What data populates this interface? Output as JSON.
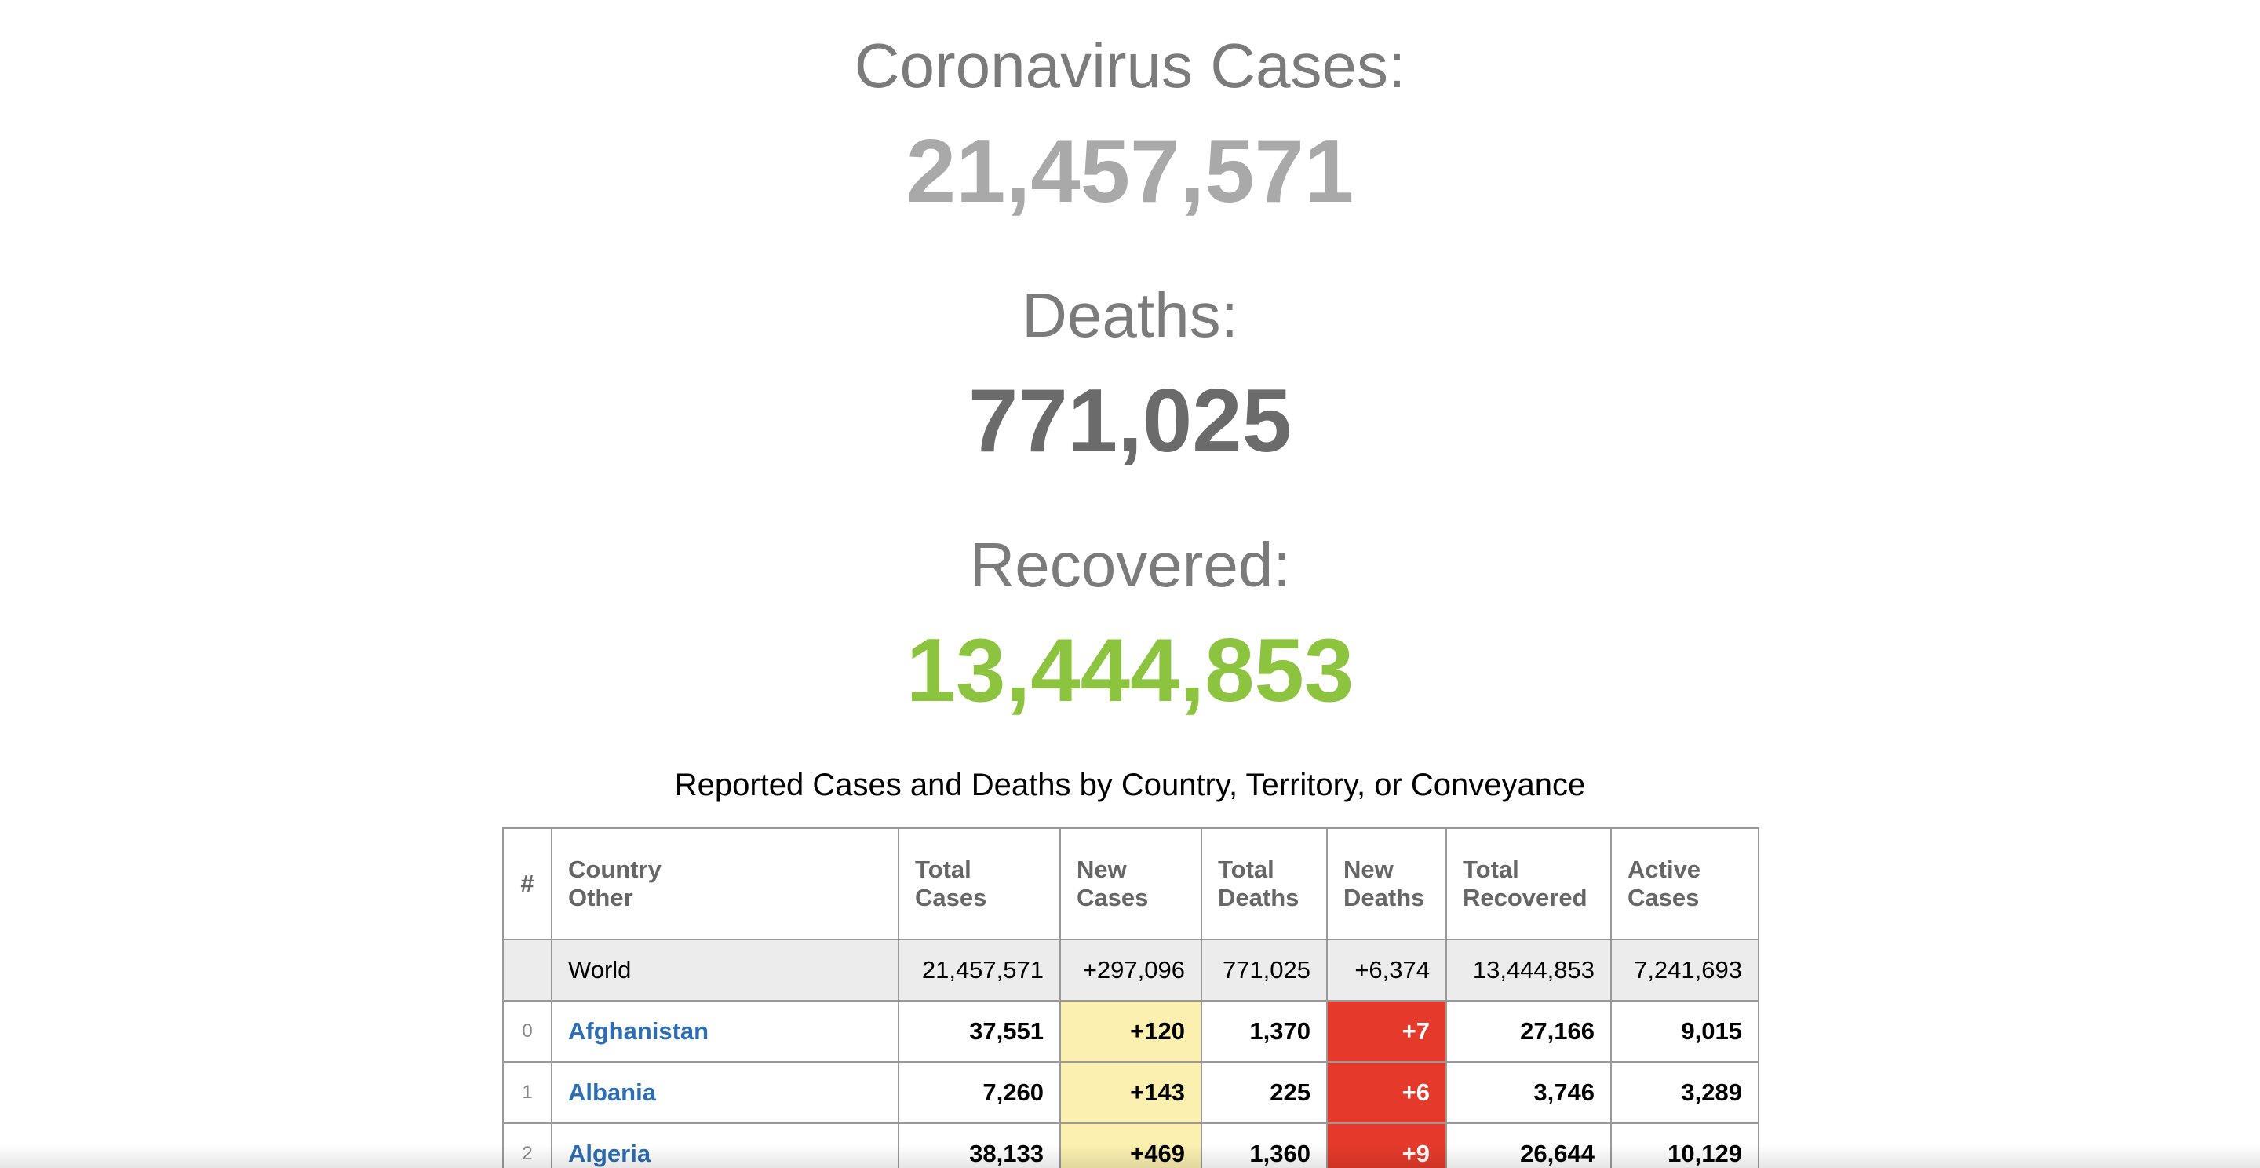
{
  "summary": {
    "cases": {
      "label": "Coronavirus Cases:",
      "value": "21,457,571"
    },
    "deaths": {
      "label": "Deaths:",
      "value": "771,025"
    },
    "recovered": {
      "label": "Recovered:",
      "value": "13,444,853"
    }
  },
  "table": {
    "title": "Reported Cases and Deaths by Country, Territory, or Conveyance",
    "headers": {
      "num": "#",
      "country_line1": "Country",
      "country_line2": "Other",
      "total_cases_line1": "Total",
      "total_cases_line2": "Cases",
      "new_cases_line1": "New",
      "new_cases_line2": "Cases",
      "total_deaths_line1": "Total",
      "total_deaths_line2": "Deaths",
      "new_deaths_line1": "New",
      "new_deaths_line2": "Deaths",
      "total_recovered_line1": "Total",
      "total_recovered_line2": "Recovered",
      "active_cases_line1": "Active",
      "active_cases_line2": "Cases"
    },
    "world": {
      "num": "",
      "country": "World",
      "total_cases": "21,457,571",
      "new_cases": "+297,096",
      "total_deaths": "771,025",
      "new_deaths": "+6,374",
      "total_recovered": "13,444,853",
      "active_cases": "7,241,693"
    },
    "rows": [
      {
        "num": "0",
        "country": "Afghanistan",
        "total_cases": "37,551",
        "new_cases": "+120",
        "total_deaths": "1,370",
        "new_deaths": "+7",
        "total_recovered": "27,166",
        "active_cases": "9,015"
      },
      {
        "num": "1",
        "country": "Albania",
        "total_cases": "7,260",
        "new_cases": "+143",
        "total_deaths": "225",
        "new_deaths": "+6",
        "total_recovered": "3,746",
        "active_cases": "3,289"
      },
      {
        "num": "2",
        "country": "Algeria",
        "total_cases": "38,133",
        "new_cases": "+469",
        "total_deaths": "1,360",
        "new_deaths": "+9",
        "total_recovered": "26,644",
        "active_cases": "10,129"
      }
    ]
  },
  "colors": {
    "cases_value": "#a9a9a9",
    "deaths_value": "#6b6b6b",
    "recovered_value": "#8cc43f",
    "link": "#2c6db3",
    "new_cases_bg": "#fbf0b0",
    "new_deaths_bg": "#e53a2b"
  }
}
